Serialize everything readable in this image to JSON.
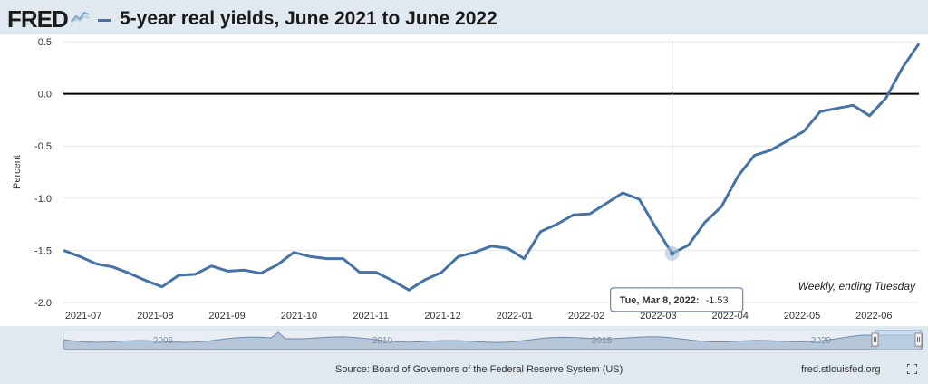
{
  "header": {
    "logo_text": "FRED",
    "title": "5-year real yields, June 2021 to June 2022"
  },
  "chart_data": {
    "type": "line",
    "title": "5-year real yields, June 2021 to June 2022",
    "ylabel": "Percent",
    "xlabel": "",
    "ylim": [
      -2.0,
      0.5
    ],
    "yticks": [
      0.5,
      0.0,
      -0.5,
      -1.0,
      -1.5,
      -2.0
    ],
    "ytick_labels": [
      "0.5",
      "0.0",
      "-0.5",
      "-1.0",
      "-1.5",
      "-2.0"
    ],
    "xtick_labels": [
      "2021-07",
      "2021-08",
      "2021-09",
      "2021-10",
      "2021-11",
      "2021-12",
      "2022-01",
      "2022-02",
      "2022-03",
      "2022-04",
      "2022-05",
      "2022-06"
    ],
    "series": [
      {
        "color": "#4572a7",
        "values": [
          -1.5,
          -1.56,
          -1.63,
          -1.66,
          -1.72,
          -1.79,
          -1.85,
          -1.74,
          -1.73,
          -1.65,
          -1.7,
          -1.69,
          -1.72,
          -1.64,
          -1.52,
          -1.56,
          -1.58,
          -1.58,
          -1.71,
          -1.71,
          -1.79,
          -1.88,
          -1.78,
          -1.71,
          -1.56,
          -1.52,
          -1.46,
          -1.48,
          -1.58,
          -1.32,
          -1.25,
          -1.16,
          -1.15,
          -1.05,
          -0.95,
          -1.01,
          -1.28,
          -1.53,
          -1.45,
          -1.23,
          -1.08,
          -0.79,
          -0.59,
          -0.54,
          -0.45,
          -0.36,
          -0.17,
          -0.14,
          -0.11,
          -0.21,
          -0.04,
          0.25,
          0.48
        ]
      }
    ],
    "zero_line": true,
    "grid": "horizontal",
    "annotation": "Weekly, ending Tuesday",
    "tooltip": {
      "point_index": 37,
      "label": "Tue, Mar 8, 2022:",
      "value": "-1.53"
    },
    "navigator_labels": [
      "2005",
      "2010",
      "2015",
      "2020"
    ]
  },
  "footer": {
    "source": "Source: Board of Governors of the Federal Reserve System (US)",
    "url": "fred.stlouisfed.org"
  }
}
